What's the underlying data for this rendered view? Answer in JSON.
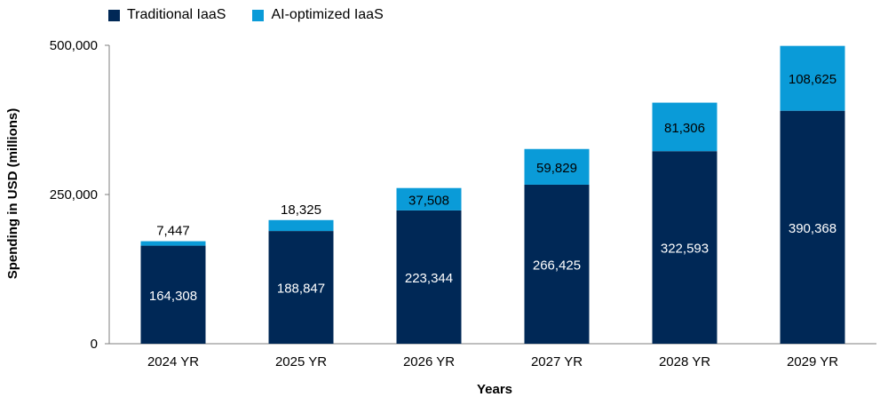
{
  "chart_data": {
    "type": "bar",
    "stacked": true,
    "categories": [
      "2024 YR",
      "2025 YR",
      "2026 YR",
      "2027 YR",
      "2028 YR",
      "2029 YR"
    ],
    "series": [
      {
        "name": "Traditional IaaS",
        "color": "#002856",
        "values": [
          164308,
          188847,
          223344,
          266425,
          322593,
          390368
        ]
      },
      {
        "name": "AI-optimized IaaS",
        "color": "#0a9bd8",
        "values": [
          7447,
          18325,
          37508,
          59829,
          81306,
          108625
        ]
      }
    ],
    "data_labels": {
      "bottom": [
        "164,308",
        "188,847",
        "223,344",
        "266,425",
        "322,593",
        "390,368"
      ],
      "top": [
        "7,447",
        "18,325",
        "37,508",
        "59,829",
        "81,306",
        "108,625"
      ]
    },
    "xlabel": "Years",
    "ylabel": "Spending in USD (millions)",
    "ylim": [
      0,
      500000
    ],
    "yticks": [
      0,
      250000,
      500000
    ],
    "ytick_labels": [
      "0",
      "250,000",
      "500,000"
    ],
    "legend_position": "top-left",
    "grid": false
  }
}
